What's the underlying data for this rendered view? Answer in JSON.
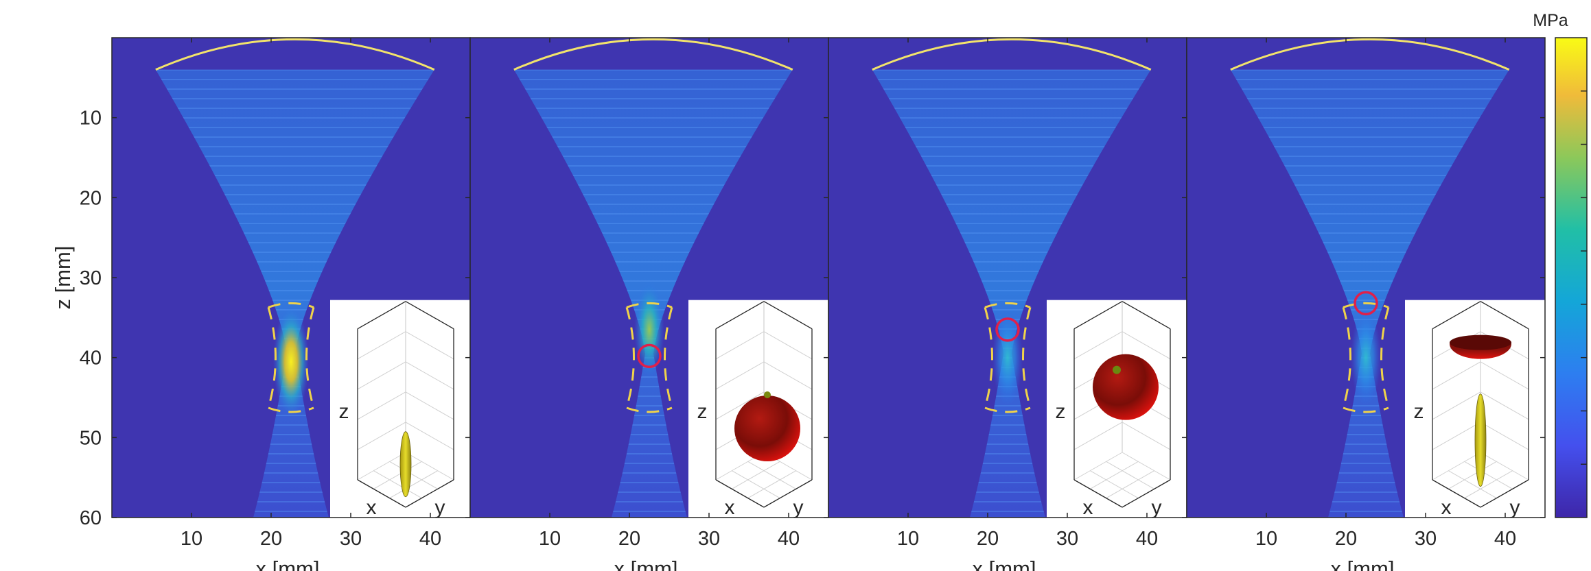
{
  "chart_data": {
    "type": "heatmap",
    "title": "",
    "panels_count_note": "four panels share the z axis and one colorbar",
    "x_axis": {
      "label": "x [mm]",
      "range": [
        0,
        45
      ],
      "ticks": [
        10,
        20,
        30,
        40
      ]
    },
    "y_axis": {
      "label": "z [mm]",
      "range": [
        0,
        60
      ],
      "reversed": true,
      "ticks": [
        10,
        20,
        30,
        40,
        50,
        60
      ]
    },
    "colorbar": {
      "unit": "MPa",
      "colormap": "parula",
      "low_color": "#3e26a8",
      "high_color": "#f9fb15"
    },
    "transducer_arc": {
      "color": "#f2e36b",
      "x_range": [
        5.5,
        40.5
      ],
      "z_edge": 4,
      "z_apex": 0.2
    },
    "focal_region": {
      "color": "#f0d34a",
      "x_center": 22.5,
      "z_range": [
        33.2,
        46.8
      ]
    },
    "panels": [
      {
        "id": "a",
        "bubble": null,
        "inset": {
          "x_label": "x",
          "y_label": "y",
          "z_label": "z",
          "objects": [
            "yellow-spindle"
          ]
        }
      },
      {
        "id": "b",
        "bubble": {
          "x": 22.5,
          "z": 39.8,
          "color": "#e0204a"
        },
        "inset": {
          "x_label": "x",
          "y_label": "y",
          "z_label": "z",
          "objects": [
            "red-sphere-low"
          ]
        }
      },
      {
        "id": "c",
        "bubble": {
          "x": 22.5,
          "z": 36.5,
          "color": "#e0204a"
        },
        "inset": {
          "x_label": "x",
          "y_label": "y",
          "z_label": "z",
          "objects": [
            "red-sphere-high"
          ]
        }
      },
      {
        "id": "d",
        "bubble": {
          "x": 22.5,
          "z": 33.2,
          "color": "#e0204a"
        },
        "inset": {
          "x_label": "x",
          "y_label": "y",
          "z_label": "z",
          "objects": [
            "red-dome",
            "yellow-spindle"
          ]
        }
      }
    ]
  }
}
